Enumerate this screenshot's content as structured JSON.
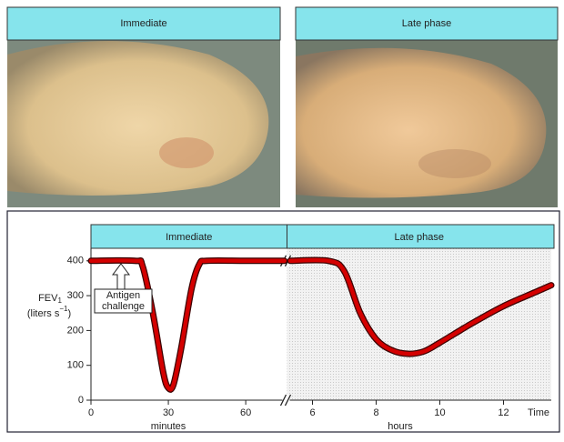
{
  "panels": [
    {
      "header": "Immediate"
    },
    {
      "header": "Late phase"
    }
  ],
  "chart_data": {
    "type": "line",
    "ylabel": {
      "main": "FEV",
      "sub": "1",
      "unit": "(liters  s",
      "sup": "−1",
      "close": ")"
    },
    "ylim": [
      0,
      436
    ],
    "yticks": [
      0,
      100,
      200,
      300,
      400
    ],
    "phases": [
      "Immediate",
      "Late phase"
    ],
    "color": "#d40000",
    "end_label": "Time",
    "annotation": [
      "Antigen",
      "challenge"
    ],
    "segments": [
      {
        "xlabel": "minutes",
        "xlim": [
          0,
          76
        ],
        "xticks": [
          0,
          30,
          60
        ],
        "shaded": false,
        "x": [
          0,
          17,
          20,
          24,
          28,
          30,
          32,
          35,
          39,
          42,
          45,
          60,
          75
        ],
        "values": [
          400,
          400,
          385,
          250,
          80,
          35,
          45,
          150,
          320,
          390,
          400,
          400,
          400
        ]
      },
      {
        "xlabel": "hours",
        "xlim": [
          5.2,
          13.5
        ],
        "xticks": [
          6,
          8,
          10,
          12
        ],
        "shaded": true,
        "x": [
          5.3,
          6.5,
          7,
          7.5,
          8,
          8.5,
          9,
          9.5,
          10,
          11,
          12,
          13,
          13.5
        ],
        "values": [
          400,
          400,
          370,
          250,
          175,
          143,
          133,
          140,
          165,
          220,
          270,
          310,
          330
        ]
      }
    ]
  }
}
